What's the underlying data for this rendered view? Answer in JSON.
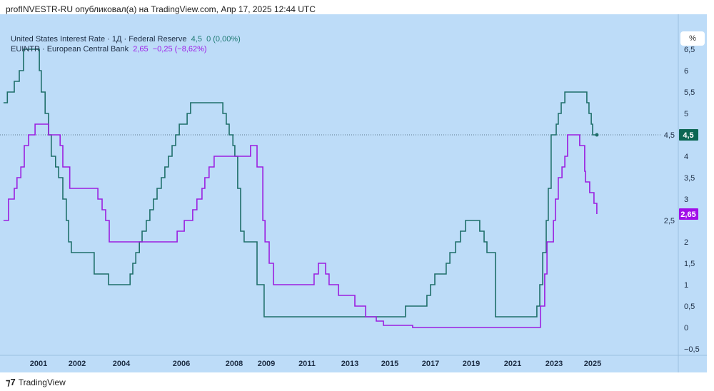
{
  "header": {
    "published": "profINVESTR-RU опубликовал(а) на TradingView.com, Апр 17, 2025 12:44 UTC"
  },
  "legend": [
    {
      "name": "United States Interest Rate · 1Д · Federal Reserve",
      "value": "4,5",
      "change": "0 (0,00%)"
    },
    {
      "name": "EUINTR · European Central Bank",
      "value": "2,65",
      "change": "−0,25 (−8,62%)"
    }
  ],
  "scale_button": "%",
  "footer": {
    "brand": "TradingView"
  },
  "colors": {
    "fed": "#1f6f6a",
    "ecb": "#9b1fe0",
    "bg": "#bddcf8"
  },
  "chart_data": {
    "type": "line",
    "step": true,
    "xlabel": "",
    "ylabel": "",
    "ylim": [
      -0.65,
      7.3
    ],
    "y_ticks": [
      "6,5",
      "6",
      "5,5",
      "5",
      "4,5",
      "4",
      "3,5",
      "3",
      "2,5",
      "2",
      "1,5",
      "1",
      "0,5",
      "0",
      "−0,5"
    ],
    "y_tick_values": [
      6.5,
      6,
      5.5,
      5,
      4.5,
      4,
      3.5,
      3,
      2.5,
      2,
      1.5,
      1,
      0.5,
      0,
      -0.5
    ],
    "x_ticks": [
      "2001",
      "2002",
      "2004",
      "2006",
      "2008",
      "2009",
      "2011",
      "2013",
      "2015",
      "2017",
      "2019",
      "2021",
      "2023",
      "2025"
    ],
    "last_labels": [
      {
        "series": "fed",
        "text": "4,5",
        "value": 4.5
      },
      {
        "series": "ecb",
        "text": "2,65",
        "value": 2.65
      }
    ],
    "series": [
      {
        "name": "United States Interest Rate",
        "key": "fed",
        "points": [
          [
            2000.09,
            5.25
          ],
          [
            2000.19,
            5.5
          ],
          [
            2000.37,
            5.75
          ],
          [
            2000.5,
            6
          ],
          [
            2000.61,
            6.5
          ],
          [
            2001.02,
            6
          ],
          [
            2001.07,
            5.5
          ],
          [
            2001.17,
            5
          ],
          [
            2001.26,
            4.5
          ],
          [
            2001.33,
            4
          ],
          [
            2001.44,
            3.75
          ],
          [
            2001.52,
            3.5
          ],
          [
            2001.63,
            3
          ],
          [
            2001.72,
            2.5
          ],
          [
            2001.78,
            2
          ],
          [
            2001.85,
            1.75
          ],
          [
            2002.77,
            1.25
          ],
          [
            2003.42,
            1
          ],
          [
            2004.29,
            1.25
          ],
          [
            2004.38,
            1.5
          ],
          [
            2004.48,
            1.75
          ],
          [
            2004.6,
            2
          ],
          [
            2004.69,
            2.25
          ],
          [
            2004.83,
            2.5
          ],
          [
            2004.95,
            2.75
          ],
          [
            2005.07,
            3
          ],
          [
            2005.19,
            3.25
          ],
          [
            2005.33,
            3.5
          ],
          [
            2005.45,
            3.75
          ],
          [
            2005.57,
            4
          ],
          [
            2005.69,
            4.25
          ],
          [
            2005.81,
            4.5
          ],
          [
            2005.93,
            4.75
          ],
          [
            2006.22,
            5
          ],
          [
            2006.35,
            5.25
          ],
          [
            2007.57,
            5
          ],
          [
            2007.7,
            4.75
          ],
          [
            2007.81,
            4.5
          ],
          [
            2007.95,
            4.25
          ],
          [
            2008.02,
            4
          ],
          [
            2008.11,
            3.25
          ],
          [
            2008.2,
            2.25
          ],
          [
            2008.31,
            2
          ],
          [
            2008.71,
            1
          ],
          [
            2008.93,
            0.25
          ],
          [
            2015.77,
            0.5
          ],
          [
            2016.82,
            0.75
          ],
          [
            2017,
            1
          ],
          [
            2017.21,
            1.25
          ],
          [
            2017.77,
            1.5
          ],
          [
            2017.95,
            1.75
          ],
          [
            2018.23,
            2
          ],
          [
            2018.47,
            2.25
          ],
          [
            2018.72,
            2.5
          ],
          [
            2019.41,
            2.25
          ],
          [
            2019.62,
            2
          ],
          [
            2019.76,
            1.75
          ],
          [
            2020.17,
            0.25
          ],
          [
            2022.17,
            0.5
          ],
          [
            2022.31,
            1
          ],
          [
            2022.45,
            1.75
          ],
          [
            2022.62,
            2.5
          ],
          [
            2022.72,
            3.25
          ],
          [
            2022.86,
            4.5
          ],
          [
            2023.11,
            4.75
          ],
          [
            2023.22,
            5
          ],
          [
            2023.37,
            5.25
          ],
          [
            2023.56,
            5.5
          ],
          [
            2024.7,
            5.25
          ],
          [
            2024.81,
            5
          ],
          [
            2024.93,
            4.75
          ],
          [
            2025,
            4.5
          ],
          [
            2025.22,
            4.5
          ]
        ]
      },
      {
        "name": "EUINTR · European Central Bank",
        "key": "ecb",
        "points": [
          [
            2000.09,
            2.5
          ],
          [
            2000.22,
            3
          ],
          [
            2000.37,
            3.25
          ],
          [
            2000.44,
            3.5
          ],
          [
            2000.54,
            3.75
          ],
          [
            2000.63,
            4.25
          ],
          [
            2000.74,
            4.5
          ],
          [
            2000.91,
            4.75
          ],
          [
            2001.26,
            4.5
          ],
          [
            2001.56,
            4.25
          ],
          [
            2001.63,
            3.75
          ],
          [
            2001.81,
            3.25
          ],
          [
            2002.94,
            3
          ],
          [
            2003.13,
            2.75
          ],
          [
            2003.29,
            2.5
          ],
          [
            2003.45,
            2
          ],
          [
            2005.86,
            2.25
          ],
          [
            2006.11,
            2.5
          ],
          [
            2006.43,
            2.75
          ],
          [
            2006.59,
            3
          ],
          [
            2006.78,
            3.25
          ],
          [
            2006.89,
            3.5
          ],
          [
            2007.05,
            3.75
          ],
          [
            2007.24,
            4
          ],
          [
            2008.51,
            4.25
          ],
          [
            2008.71,
            3.75
          ],
          [
            2008.89,
            2.5
          ],
          [
            2008.96,
            2
          ],
          [
            2009.14,
            1.5
          ],
          [
            2009.35,
            1
          ],
          [
            2011.33,
            1.25
          ],
          [
            2011.53,
            1.5
          ],
          [
            2011.87,
            1.25
          ],
          [
            2012.03,
            1
          ],
          [
            2012.47,
            0.75
          ],
          [
            2013.25,
            0.5
          ],
          [
            2013.79,
            0.25
          ],
          [
            2014.32,
            0.15
          ],
          [
            2014.68,
            0.05
          ],
          [
            2016.12,
            0
          ],
          [
            2022.34,
            0.5
          ],
          [
            2022.55,
            1.25
          ],
          [
            2022.66,
            2
          ],
          [
            2022.97,
            2.5
          ],
          [
            2023.07,
            3
          ],
          [
            2023.22,
            3.5
          ],
          [
            2023.41,
            3.75
          ],
          [
            2023.56,
            4
          ],
          [
            2023.7,
            4.5
          ],
          [
            2024.33,
            4.25
          ],
          [
            2024.59,
            3.65
          ],
          [
            2024.63,
            3.4
          ],
          [
            2024.85,
            3.15
          ],
          [
            2025.07,
            2.9
          ],
          [
            2025.22,
            2.65
          ]
        ]
      }
    ]
  }
}
